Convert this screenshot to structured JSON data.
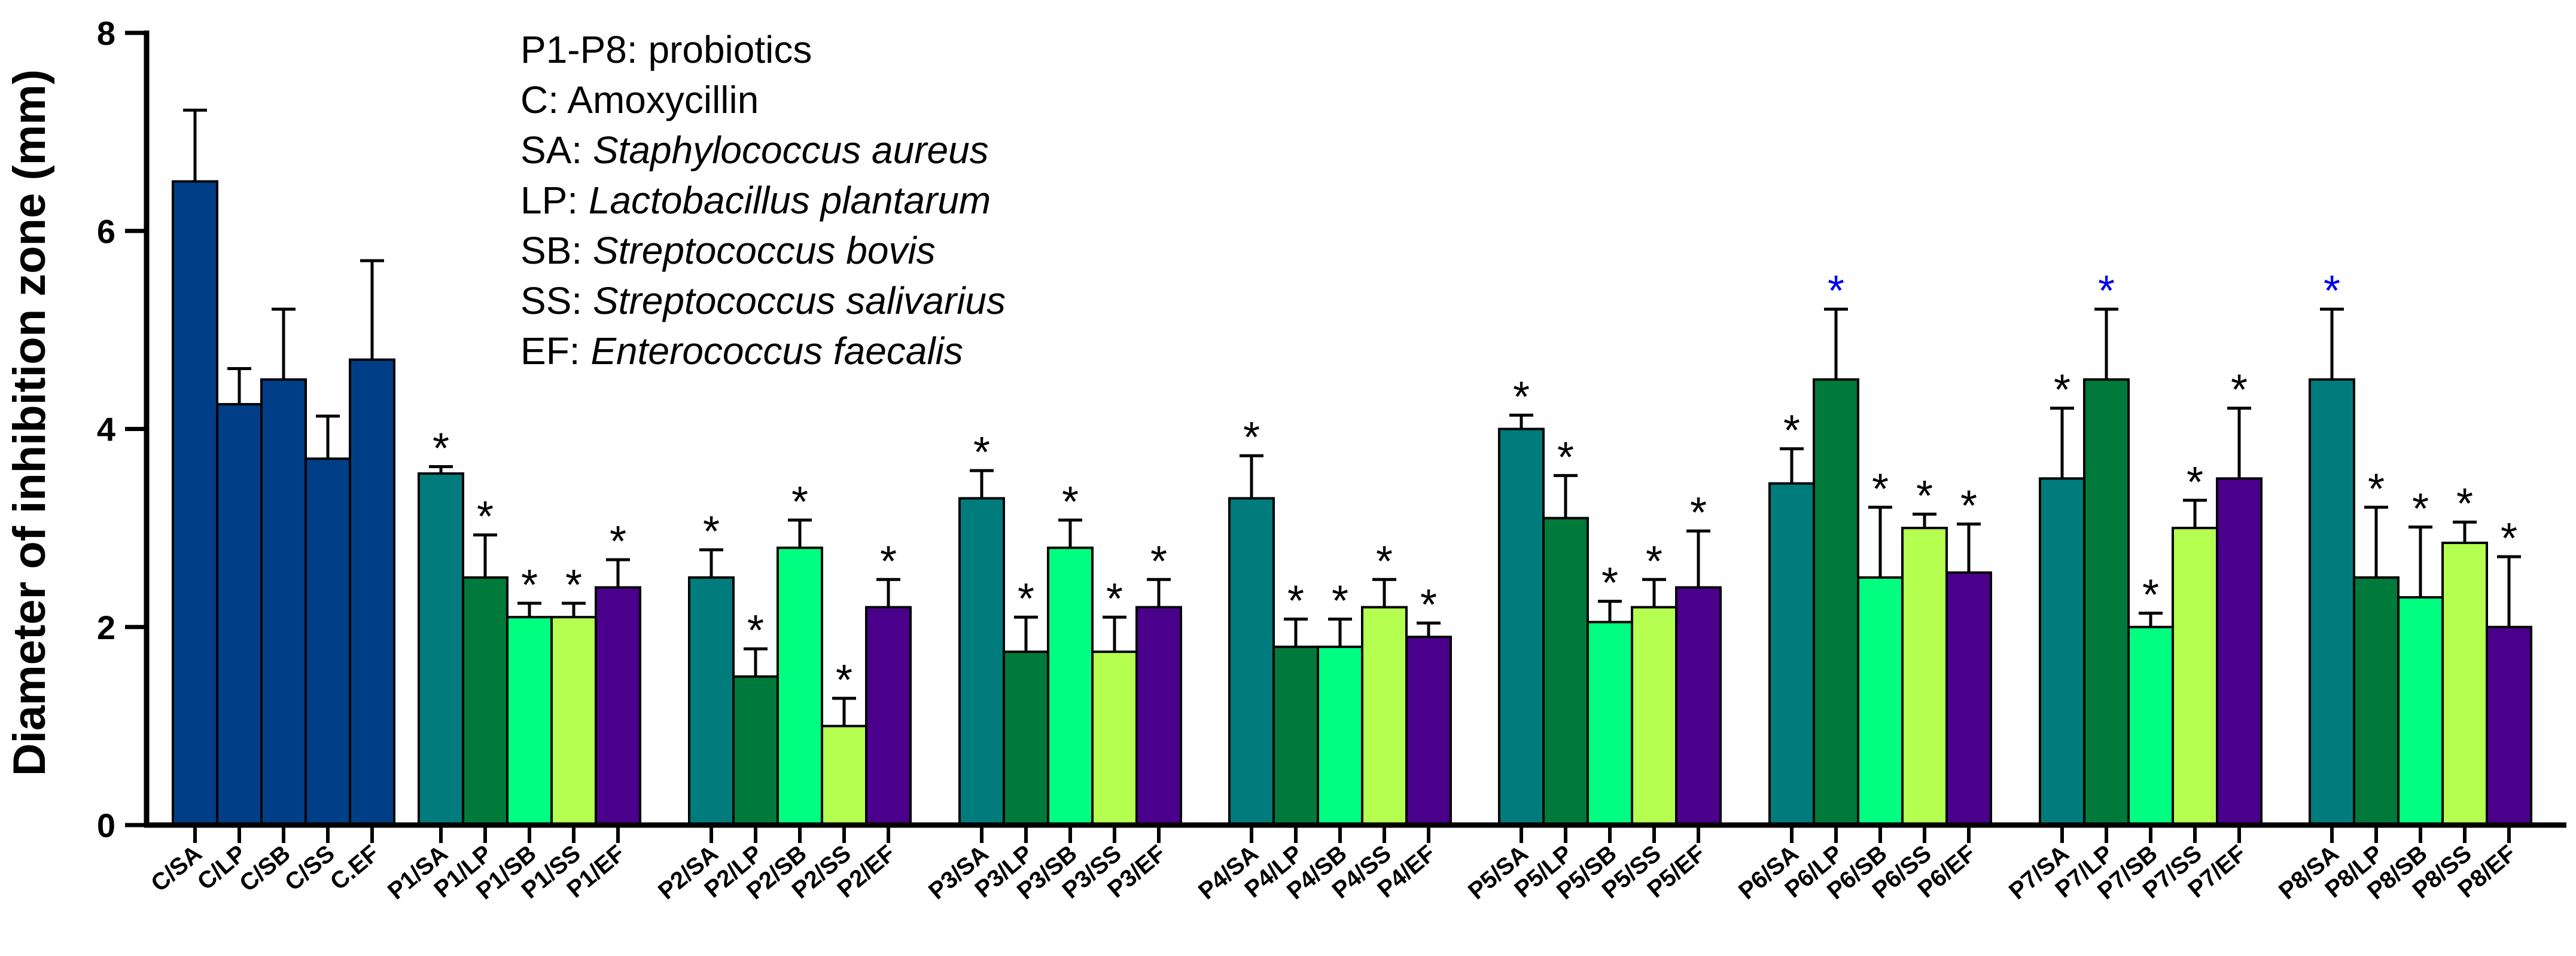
{
  "chart_data": {
    "type": "bar",
    "ylabel": "Diameter of inhibition zone (mm)",
    "xlabel": "",
    "ylim": [
      0,
      8
    ],
    "yticks": [
      0,
      2,
      4,
      6,
      8
    ],
    "legend": [
      {
        "abbr": "P1-P8:",
        "desc": "probiotics",
        "italic": false
      },
      {
        "abbr": "C:",
        "desc": "Amoxycillin",
        "italic": false
      },
      {
        "abbr": "SA:",
        "desc": "Staphylococcus aureus",
        "italic": true
      },
      {
        "abbr": "LP:",
        "desc": "Lactobacillus plantarum",
        "italic": true
      },
      {
        "abbr": "SB:",
        "desc": "Streptococcus bovis",
        "italic": true
      },
      {
        "abbr": "SS:",
        "desc": "Streptococcus salivarius",
        "italic": true
      },
      {
        "abbr": "EF:",
        "desc": "Enterococcus faecalis",
        "italic": true
      }
    ],
    "colors": {
      "C": "#003f87",
      "SA": "#007c7c",
      "LP": "#007a3a",
      "SB": "#00ff80",
      "SS": "#b4ff50",
      "EF": "#4b008c",
      "sig_black": "#000000",
      "sig_blue": "#0000ee",
      "axis": "#000000"
    },
    "groups": [
      {
        "name": "C",
        "bars": [
          {
            "label": "C/SA",
            "value": 6.5,
            "error": 0.72,
            "color_key": "C",
            "star": ""
          },
          {
            "label": "C/LP",
            "value": 4.25,
            "error": 0.36,
            "color_key": "C",
            "star": ""
          },
          {
            "label": "C/SB",
            "value": 4.5,
            "error": 0.71,
            "color_key": "C",
            "star": ""
          },
          {
            "label": "C/SS",
            "value": 3.7,
            "error": 0.43,
            "color_key": "C",
            "star": ""
          },
          {
            "label": "C.EF",
            "value": 4.7,
            "error": 1.0,
            "color_key": "C",
            "star": ""
          }
        ]
      },
      {
        "name": "P1",
        "bars": [
          {
            "label": "P1/SA",
            "value": 3.55,
            "error": 0.07,
            "color_key": "SA",
            "star": "black"
          },
          {
            "label": "P1/LP",
            "value": 2.5,
            "error": 0.43,
            "color_key": "LP",
            "star": "black"
          },
          {
            "label": "P1/SB",
            "value": 2.1,
            "error": 0.14,
            "color_key": "SB",
            "star": "black"
          },
          {
            "label": "P1/SS",
            "value": 2.1,
            "error": 0.14,
            "color_key": "SS",
            "star": "black"
          },
          {
            "label": "P1/EF",
            "value": 2.4,
            "error": 0.28,
            "color_key": "EF",
            "star": "black"
          }
        ]
      },
      {
        "name": "P2",
        "bars": [
          {
            "label": "P2/SA",
            "value": 2.5,
            "error": 0.28,
            "color_key": "SA",
            "star": "black"
          },
          {
            "label": "P2/LP",
            "value": 1.5,
            "error": 0.28,
            "color_key": "LP",
            "star": "black"
          },
          {
            "label": "P2/SB",
            "value": 2.8,
            "error": 0.28,
            "color_key": "SB",
            "star": "black"
          },
          {
            "label": "P2/SS",
            "value": 1.0,
            "error": 0.28,
            "color_key": "SS",
            "star": "black"
          },
          {
            "label": "P2/EF",
            "value": 2.2,
            "error": 0.28,
            "color_key": "EF",
            "star": "black"
          }
        ]
      },
      {
        "name": "P3",
        "bars": [
          {
            "label": "P3/SA",
            "value": 3.3,
            "error": 0.28,
            "color_key": "SA",
            "star": "black"
          },
          {
            "label": "P3/LP",
            "value": 1.75,
            "error": 0.35,
            "color_key": "LP",
            "star": "black"
          },
          {
            "label": "P3/SB",
            "value": 2.8,
            "error": 0.28,
            "color_key": "SB",
            "star": "black"
          },
          {
            "label": "P3/SS",
            "value": 1.75,
            "error": 0.35,
            "color_key": "SS",
            "star": "black"
          },
          {
            "label": "P3/EF",
            "value": 2.2,
            "error": 0.28,
            "color_key": "EF",
            "star": "black"
          }
        ]
      },
      {
        "name": "P4",
        "bars": [
          {
            "label": "P4/SA",
            "value": 3.3,
            "error": 0.43,
            "color_key": "SA",
            "star": "black"
          },
          {
            "label": "P4/LP",
            "value": 1.8,
            "error": 0.28,
            "color_key": "LP",
            "star": "black"
          },
          {
            "label": "P4/SB",
            "value": 1.8,
            "error": 0.28,
            "color_key": "SB",
            "star": "black"
          },
          {
            "label": "P4/SS",
            "value": 2.2,
            "error": 0.28,
            "color_key": "SS",
            "star": "black"
          },
          {
            "label": "P4/EF",
            "value": 1.9,
            "error": 0.14,
            "color_key": "EF",
            "star": "black"
          }
        ]
      },
      {
        "name": "P5",
        "bars": [
          {
            "label": "P5/SA",
            "value": 4.0,
            "error": 0.14,
            "color_key": "SA",
            "star": "black"
          },
          {
            "label": "P5/LP",
            "value": 3.1,
            "error": 0.43,
            "color_key": "LP",
            "star": "black"
          },
          {
            "label": "P5/SB",
            "value": 2.05,
            "error": 0.21,
            "color_key": "SB",
            "star": "black"
          },
          {
            "label": "P5/SS",
            "value": 2.2,
            "error": 0.28,
            "color_key": "SS",
            "star": "black"
          },
          {
            "label": "P5/EF",
            "value": 2.4,
            "error": 0.57,
            "color_key": "EF",
            "star": "black"
          }
        ]
      },
      {
        "name": "P6",
        "bars": [
          {
            "label": "P6/SA",
            "value": 3.45,
            "error": 0.35,
            "color_key": "SA",
            "star": "black"
          },
          {
            "label": "P6/LP",
            "value": 4.5,
            "error": 0.71,
            "color_key": "LP",
            "star": "blue"
          },
          {
            "label": "P6/SB",
            "value": 2.5,
            "error": 0.71,
            "color_key": "SB",
            "star": "black"
          },
          {
            "label": "P6/SS",
            "value": 3.0,
            "error": 0.14,
            "color_key": "SS",
            "star": "black"
          },
          {
            "label": "P6/EF",
            "value": 2.55,
            "error": 0.49,
            "color_key": "EF",
            "star": "black"
          }
        ]
      },
      {
        "name": "P7",
        "bars": [
          {
            "label": "P7/SA",
            "value": 3.5,
            "error": 0.71,
            "color_key": "SA",
            "star": "black"
          },
          {
            "label": "P7/LP",
            "value": 4.5,
            "error": 0.71,
            "color_key": "LP",
            "star": "blue"
          },
          {
            "label": "P7/SB",
            "value": 2.0,
            "error": 0.14,
            "color_key": "SB",
            "star": "black"
          },
          {
            "label": "P7/SS",
            "value": 3.0,
            "error": 0.28,
            "color_key": "SS",
            "star": "black"
          },
          {
            "label": "P7/EF",
            "value": 3.5,
            "error": 0.71,
            "color_key": "EF",
            "star": "black"
          }
        ]
      },
      {
        "name": "P8",
        "bars": [
          {
            "label": "P8/SA",
            "value": 4.5,
            "error": 0.71,
            "color_key": "SA",
            "star": "blue"
          },
          {
            "label": "P8/LP",
            "value": 2.5,
            "error": 0.71,
            "color_key": "LP",
            "star": "black"
          },
          {
            "label": "P8/SB",
            "value": 2.3,
            "error": 0.71,
            "color_key": "SB",
            "star": "black"
          },
          {
            "label": "P8/SS",
            "value": 2.85,
            "error": 0.21,
            "color_key": "SS",
            "star": "black"
          },
          {
            "label": "P8/EF",
            "value": 2.0,
            "error": 0.71,
            "color_key": "EF",
            "star": "black"
          }
        ]
      }
    ],
    "star_symbol": "*"
  }
}
